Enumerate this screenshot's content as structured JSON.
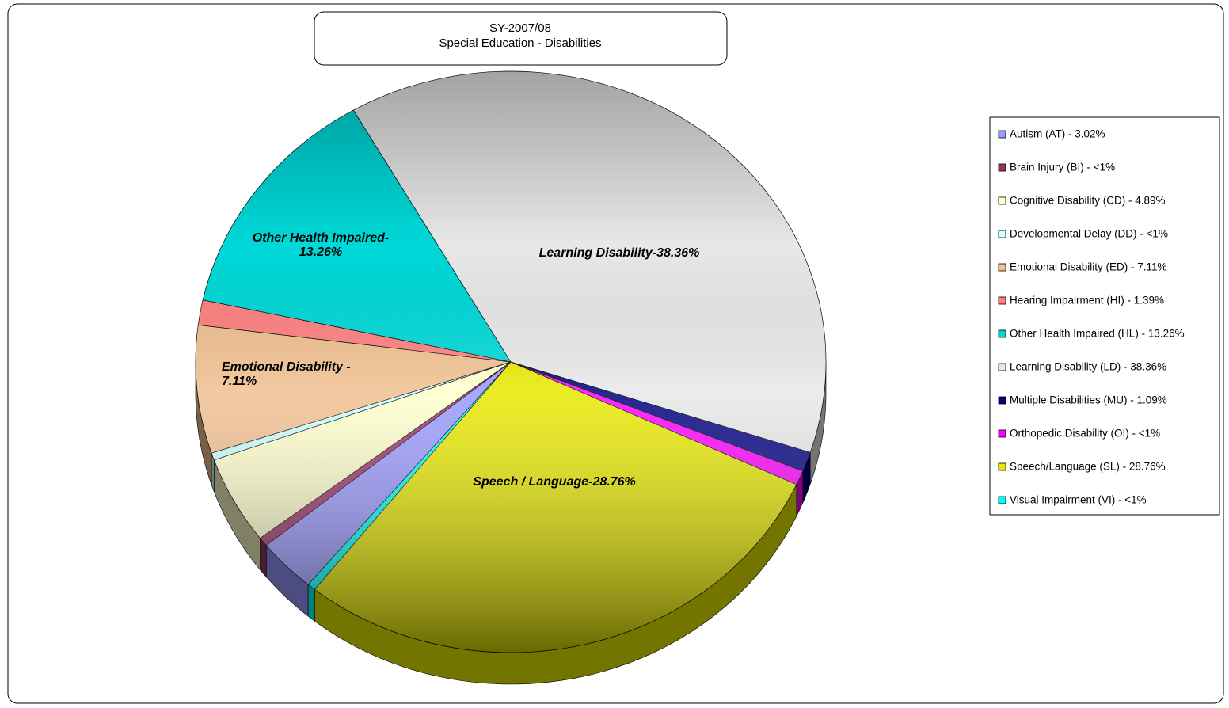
{
  "chart_data": {
    "type": "pie",
    "title": "SY-2007/08",
    "subtitle": "Special Education - Disabilities",
    "categories": [
      "Autism (AT) - 3.02%",
      "Brain Injury (BI) - <1%",
      "Cognitive Disability (CD) - 4.89%",
      "Developmental Delay (DD) - <1%",
      "Emotional Disability (ED) - 7.11%",
      "Hearing Impairment (HI) - 1.39%",
      "Other Health Impaired (HL) - 13.26%",
      "Learning Disability (LD) - 38.36%",
      "Multiple Disabilities (MU) - 1.09%",
      "Orthopedic Disability (OI) - <1%",
      "Speech/Language (SL) - 28.76%",
      "Visual Impairment (VI) - <1%"
    ],
    "values": [
      3.02,
      0.5,
      4.89,
      0.4,
      7.11,
      1.39,
      13.26,
      38.36,
      1.09,
      0.8,
      28.76,
      0.42
    ],
    "value_labels": [
      null,
      null,
      null,
      null,
      "Emotional Disability - 7.11%",
      null,
      "Other Health Impaired-13.26%",
      "Learning Disability-38.36%",
      null,
      null,
      "Speech / Language-28.76%",
      null
    ],
    "colors": [
      "#9999ff",
      "#993366",
      "#ffffcc",
      "#ccffff",
      "#f0c090",
      "#ff8080",
      "#00d8d8",
      "#e8e8e8",
      "#000080",
      "#ff00ff",
      "#e8e800",
      "#00ffff"
    ],
    "legend": "right"
  }
}
